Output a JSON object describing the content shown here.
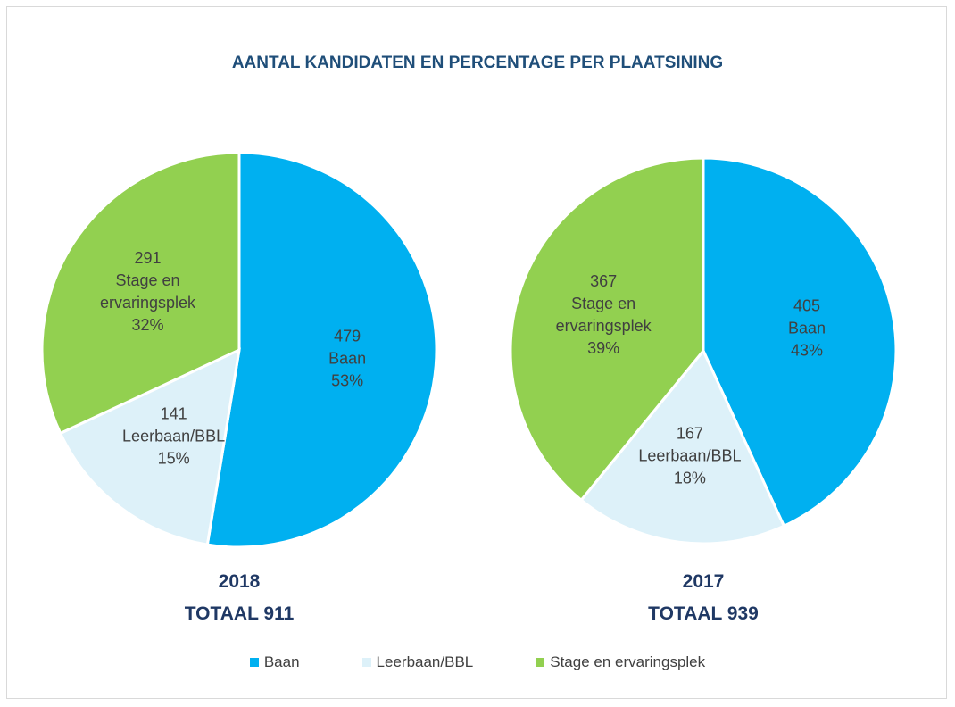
{
  "chart_data": {
    "type": "pie",
    "title": "AANTAL KANDIDATEN EN PERCENTAGE PER PLAATSINING",
    "categories": [
      "Baan",
      "Leerbaan/BBL",
      "Stage en ervaringsplek"
    ],
    "colors": [
      "#00b0f0",
      "#ddf1f9",
      "#92d050"
    ],
    "legend": "bottom",
    "series": [
      {
        "name": "2018",
        "caption": "TOTAAL 911",
        "values": [
          479,
          141,
          291
        ],
        "value_labels": [
          "53%",
          "15%",
          "32%"
        ]
      },
      {
        "name": "2017",
        "caption": "TOTAAL 939",
        "values": [
          405,
          167,
          367
        ],
        "value_labels": [
          "43%",
          "18%",
          "39%"
        ]
      }
    ]
  }
}
